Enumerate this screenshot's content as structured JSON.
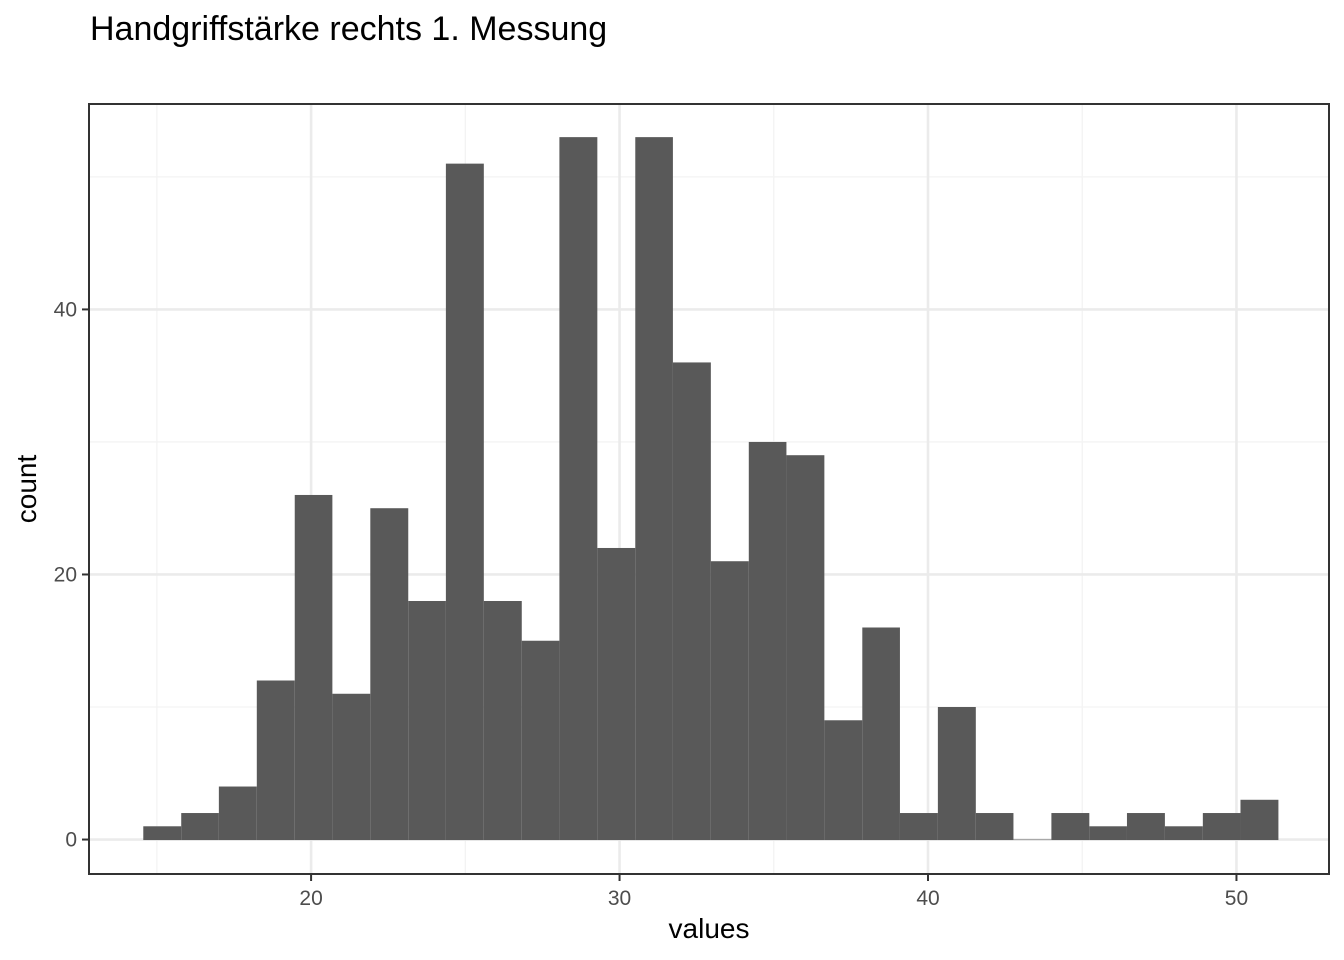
{
  "chart_data": {
    "type": "bar",
    "title": "Handgriffstärke rechts 1. Messung",
    "xlabel": "values",
    "ylabel": "count",
    "x_ticks": [
      20,
      30,
      40,
      50
    ],
    "y_ticks": [
      0,
      20,
      40
    ],
    "xlim": [
      12.8,
      53.0
    ],
    "ylim": [
      -2.6,
      55.5
    ],
    "grid": true,
    "bin_width": 1.2267,
    "bins": [
      {
        "x0": 14.56,
        "x1": 15.79,
        "count": 1
      },
      {
        "x0": 15.79,
        "x1": 17.01,
        "count": 2
      },
      {
        "x0": 17.01,
        "x1": 18.24,
        "count": 4
      },
      {
        "x0": 18.24,
        "x1": 19.47,
        "count": 12
      },
      {
        "x0": 19.47,
        "x1": 20.69,
        "count": 26
      },
      {
        "x0": 20.69,
        "x1": 21.92,
        "count": 11
      },
      {
        "x0": 21.92,
        "x1": 23.15,
        "count": 25
      },
      {
        "x0": 23.15,
        "x1": 24.37,
        "count": 18
      },
      {
        "x0": 24.37,
        "x1": 25.6,
        "count": 51
      },
      {
        "x0": 25.6,
        "x1": 26.83,
        "count": 18
      },
      {
        "x0": 26.83,
        "x1": 28.05,
        "count": 15
      },
      {
        "x0": 28.05,
        "x1": 29.28,
        "count": 53
      },
      {
        "x0": 29.28,
        "x1": 30.51,
        "count": 22
      },
      {
        "x0": 30.51,
        "x1": 31.73,
        "count": 53
      },
      {
        "x0": 31.73,
        "x1": 32.96,
        "count": 36
      },
      {
        "x0": 32.96,
        "x1": 34.19,
        "count": 21
      },
      {
        "x0": 34.19,
        "x1": 35.41,
        "count": 30
      },
      {
        "x0": 35.41,
        "x1": 36.64,
        "count": 29
      },
      {
        "x0": 36.64,
        "x1": 37.87,
        "count": 9
      },
      {
        "x0": 37.87,
        "x1": 39.09,
        "count": 16
      },
      {
        "x0": 39.09,
        "x1": 40.32,
        "count": 2
      },
      {
        "x0": 40.32,
        "x1": 41.55,
        "count": 10
      },
      {
        "x0": 41.55,
        "x1": 42.77,
        "count": 2
      },
      {
        "x0": 42.77,
        "x1": 44.0,
        "count": 0
      },
      {
        "x0": 44.0,
        "x1": 45.23,
        "count": 2
      },
      {
        "x0": 45.23,
        "x1": 46.45,
        "count": 1
      },
      {
        "x0": 46.45,
        "x1": 47.68,
        "count": 2
      },
      {
        "x0": 47.68,
        "x1": 48.91,
        "count": 1
      },
      {
        "x0": 48.91,
        "x1": 50.13,
        "count": 2
      },
      {
        "x0": 50.13,
        "x1": 51.36,
        "count": 3
      }
    ],
    "colors": {
      "bar_fill": "#595959",
      "panel_border": "#333333",
      "grid_major": "#ebebeb",
      "grid_minor": "#f3f3f3",
      "tick_label": "#4d4d4d"
    }
  }
}
